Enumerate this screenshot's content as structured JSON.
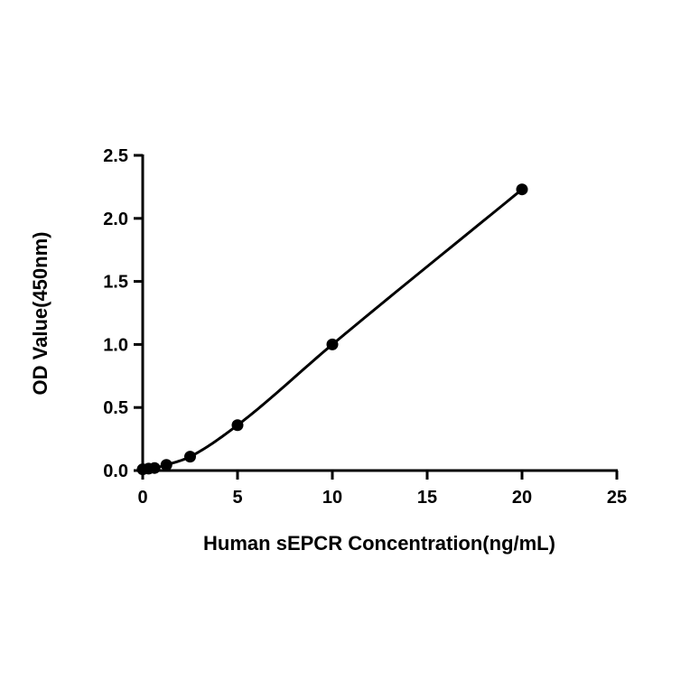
{
  "chart_data": {
    "type": "scatter",
    "title": "",
    "xlabel": "Human sEPCR Concentration(ng/mL)",
    "ylabel": "OD Value(450nm)",
    "xlim": [
      0,
      25
    ],
    "ylim": [
      0,
      2.5
    ],
    "xticks": [
      "0",
      "5",
      "10",
      "15",
      "20",
      "25"
    ],
    "yticks": [
      "0.0",
      "0.5",
      "1.0",
      "1.5",
      "2.0",
      "2.5"
    ],
    "grid": false,
    "legend": "none",
    "series": [
      {
        "x": [
          0,
          0.3125,
          0.625,
          1.25,
          2.5,
          5,
          10,
          20
        ],
        "y": [
          0.01,
          0.015,
          0.02,
          0.045,
          0.11,
          0.36,
          1.0,
          2.23
        ],
        "fit_curve": true
      }
    ],
    "colors": {
      "marker": "#000000",
      "line": "#000000",
      "axis": "#000000"
    }
  }
}
